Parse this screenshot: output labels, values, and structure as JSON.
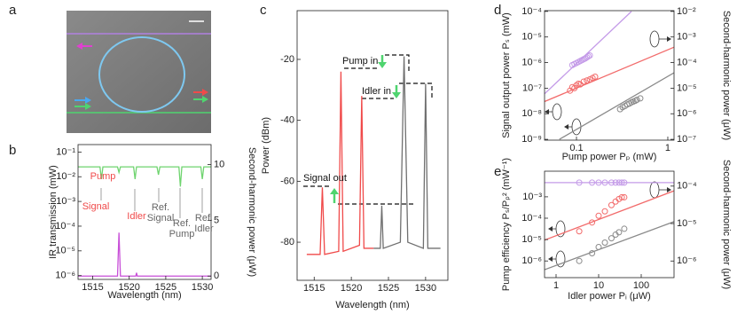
{
  "panel_labels": [
    "a",
    "b",
    "c",
    "d",
    "e"
  ],
  "chart_data": [
    {
      "type": "line",
      "xlabel": "Wavelength (nm)",
      "ylabel": "IR transmission (mW)",
      "y2label": "Second-harmonic power (μW)",
      "xlim": [
        1513,
        1531.2
      ],
      "xticks": [
        1515,
        1520,
        1525,
        1530
      ],
      "ylog": true,
      "ylim": [
        7e-07,
        0.2
      ],
      "yticks": [
        {
          "value": 1e-06,
          "label": "10⁻⁶"
        },
        {
          "value": 1e-05,
          "label": "10⁻⁵"
        },
        {
          "value": 0.0001,
          "label": "10⁻⁴"
        },
        {
          "value": 0.001,
          "label": "10⁻³"
        },
        {
          "value": 0.01,
          "label": "10⁻²"
        },
        {
          "value": 0.1,
          "label": "10⁻¹"
        }
      ],
      "y2lim": [
        -0.3,
        11.8
      ],
      "y2ticks": [
        0,
        5,
        10
      ],
      "series": [
        {
          "color": "#6fd46f",
          "style": "line",
          "x": [
            1513,
            1516,
            1516.2,
            1516.4,
            1518.4,
            1518.6,
            1518.8,
            1520.6,
            1520.8,
            1521,
            1523.8,
            1524,
            1524.2,
            1526.8,
            1527,
            1527.2,
            1529.8,
            1530,
            1530.2,
            1531.2
          ],
          "values": [
            0.025,
            0.025,
            0.008,
            0.025,
            0.025,
            0.015,
            0.025,
            0.025,
            0.008,
            0.025,
            0.025,
            0.012,
            0.025,
            0.025,
            0.004,
            0.025,
            0.025,
            0.008,
            0.025,
            0.025
          ]
        },
        {
          "color": "#c84fd8",
          "style": "line",
          "axis": "y2",
          "x": [
            1513,
            1518.4,
            1518.6,
            1518.8,
            1520.9,
            1521,
            1521.1,
            1531.2
          ],
          "values": [
            0,
            0,
            3.9,
            0,
            0,
            0.3,
            0,
            0
          ]
        }
      ],
      "annotations": [
        {
          "text": "Pump",
          "color": "#f04a4a"
        },
        {
          "text": "Signal",
          "color": "#f04a4a"
        },
        {
          "text": "Idler",
          "color": "#f04a4a"
        },
        {
          "text": "Ref.",
          "color": "#666666"
        },
        {
          "text": "Signal",
          "color": "#666666"
        },
        {
          "text": "Ref.",
          "color": "#666666"
        },
        {
          "text": "Pump",
          "color": "#666666"
        },
        {
          "text": "Ref.",
          "color": "#666666"
        },
        {
          "text": "Idler",
          "color": "#666666"
        }
      ]
    },
    {
      "type": "line",
      "xlabel": "Wavelength (nm)",
      "ylabel": "Power  (dBm)",
      "xlim": [
        1512.7,
        1533
      ],
      "xticks": [
        1515,
        1520,
        1525,
        1530
      ],
      "ylim": [
        -92.5,
        -4
      ],
      "yticks": [
        -80,
        -60,
        -40,
        -20
      ],
      "series": [
        {
          "color": "#f04a4a",
          "style": "line",
          "x": [
            1514,
            1515.8,
            1516.1,
            1516.4,
            1518.3,
            1518.6,
            1518.9,
            1521.1,
            1521.4,
            1521.7,
            1523
          ],
          "values": [
            -84,
            -84,
            -62,
            -84,
            -83,
            -24,
            -83,
            -81,
            -32,
            -82,
            -82
          ]
        },
        {
          "color": "#707070",
          "style": "line",
          "x": [
            1523,
            1523.9,
            1524.1,
            1524.3,
            1526.6,
            1527.1,
            1527.6,
            1529.7,
            1530,
            1530.3,
            1532
          ],
          "values": [
            -82,
            -82,
            -68,
            -82,
            -80,
            -19,
            -80,
            -82,
            -28,
            -82,
            -82
          ]
        }
      ],
      "annotations": [
        {
          "text": "Pump in",
          "color": "#111111"
        },
        {
          "text": "Idler in",
          "color": "#111111"
        },
        {
          "text": "Signal out",
          "color": "#111111"
        }
      ]
    },
    {
      "type": "scatter",
      "xlabel": "Pump power Pₚ (mW)",
      "ylabel": "Signal output power Pₛ (mW)",
      "y2label": "Second-harmonic power (μW)",
      "xlog": true,
      "xlim": [
        0.0447,
        1.17
      ],
      "xticks": [
        0.1,
        1
      ],
      "ylog": true,
      "ylim": [
        9.3e-10,
        0.000107
      ],
      "yticks": [
        {
          "value": 1e-09,
          "label": "10⁻⁹"
        },
        {
          "value": 1e-08,
          "label": "10⁻⁸"
        },
        {
          "value": 1e-07,
          "label": "10⁻⁷"
        },
        {
          "value": 1e-06,
          "label": "10⁻⁶"
        },
        {
          "value": 1e-05,
          "label": "10⁻⁵"
        },
        {
          "value": 0.0001,
          "label": "10⁻⁴"
        }
      ],
      "y2log": true,
      "y2lim": [
        9.3e-08,
        0.0107
      ],
      "y2ticks": [
        {
          "value": 1e-07,
          "label": "10⁻⁷"
        },
        {
          "value": 1e-06,
          "label": "10⁻⁶"
        },
        {
          "value": 1e-05,
          "label": "10⁻⁵"
        },
        {
          "value": 0.0001,
          "label": "10⁻⁴"
        },
        {
          "value": 0.001,
          "label": "10⁻³"
        },
        {
          "value": 0.01,
          "label": "10⁻²"
        }
      ],
      "series": [
        {
          "color": "#c49be8",
          "style": "line",
          "axis": "y2",
          "x": [
            0.0447,
            0.4
          ],
          "values": [
            6e-06,
            0.01
          ]
        },
        {
          "color": "#c49be8",
          "style": "markers",
          "axis": "y2",
          "x": [
            0.09,
            0.095,
            0.1,
            0.105,
            0.11,
            0.115,
            0.12,
            0.125,
            0.13,
            0.135,
            0.14
          ],
          "values": [
            8e-05,
            8.8e-05,
            9.6e-05,
            0.000105,
            0.000115,
            0.000125,
            0.000135,
            0.000145,
            0.00016,
            0.000175,
            0.00019
          ]
        },
        {
          "color": "#f26b6b",
          "style": "line",
          "x": [
            0.0447,
            1.17
          ],
          "values": [
            3e-08,
            4e-06
          ]
        },
        {
          "color": "#f26b6b",
          "style": "markers",
          "x": [
            0.085,
            0.09,
            0.095,
            0.1,
            0.105,
            0.11,
            0.12,
            0.13,
            0.14,
            0.15,
            0.16
          ],
          "values": [
            8e-08,
            1.1e-07,
            1e-07,
            1.3e-07,
            1.5e-07,
            1.4e-07,
            1.8e-07,
            2e-07,
            2.2e-07,
            2.5e-07,
            2.8e-07
          ]
        },
        {
          "color": "#8a8a8a",
          "style": "line",
          "x": [
            0.065,
            1.17
          ],
          "values": [
            1e-09,
            4e-07
          ]
        },
        {
          "color": "#8a8a8a",
          "style": "markers",
          "x": [
            0.3,
            0.32,
            0.34,
            0.36,
            0.38,
            0.4,
            0.42,
            0.44,
            0.46,
            0.5
          ],
          "values": [
            1.5e-08,
            1.8e-08,
            2e-08,
            2.3e-08,
            2.5e-08,
            2.8e-08,
            3e-08,
            3.2e-08,
            3.5e-08,
            4e-08
          ]
        }
      ]
    },
    {
      "type": "scatter",
      "xlabel": "Idler power Pᵢ (μW)",
      "ylabel": "Pump efficiency Pₛ/Pₚ² (mW⁻¹)",
      "y2label": "Second-harmonic power (μW)",
      "xlog": true,
      "xlim": [
        0.536,
        590
      ],
      "xticks": [
        1,
        10,
        100
      ],
      "ylog": true,
      "ylim": [
        1.66e-07,
        0.0158
      ],
      "yticks": [
        {
          "value": 1e-06,
          "label": "10⁻⁶"
        },
        {
          "value": 1e-05,
          "label": "10⁻⁵"
        },
        {
          "value": 0.0001,
          "label": "10⁻⁴"
        },
        {
          "value": 0.001,
          "label": "10⁻³"
        }
      ],
      "y2log": true,
      "y2lim": [
        3.6e-07,
        0.00025
      ],
      "y2ticks": [
        {
          "value": 1e-06,
          "label": "10⁻⁶"
        },
        {
          "value": 1e-05,
          "label": "10⁻⁵"
        },
        {
          "value": 0.0001,
          "label": "10⁻⁴"
        }
      ],
      "series": [
        {
          "color": "#c49be8",
          "style": "line",
          "axis": "y2",
          "x": [
            0.536,
            590
          ],
          "values": [
            0.000124,
            0.000124
          ]
        },
        {
          "color": "#c49be8",
          "style": "markers",
          "axis": "y2",
          "x": [
            3.5,
            7,
            10,
            14,
            20,
            25,
            30,
            35,
            40
          ],
          "values": [
            0.000124,
            0.000124,
            0.000124,
            0.000124,
            0.000124,
            0.000124,
            0.000124,
            0.000124,
            0.000124
          ]
        },
        {
          "color": "#f26b6b",
          "style": "line",
          "x": [
            0.536,
            590
          ],
          "values": [
            9.5e-06,
            0.0019
          ]
        },
        {
          "color": "#f26b6b",
          "style": "markers",
          "x": [
            3.5,
            7,
            10,
            14,
            20,
            25,
            30,
            35,
            40
          ],
          "values": [
            2.45e-05,
            6.3e-05,
            0.00013,
            0.00021,
            0.00041,
            0.0006,
            0.00079,
            0.00095,
            0.00095
          ]
        },
        {
          "color": "#8a8a8a",
          "style": "line",
          "x": [
            0.536,
            590
          ],
          "values": [
            3.9e-07,
            6.9e-05
          ]
        },
        {
          "color": "#8a8a8a",
          "style": "markers",
          "x": [
            3.5,
            7,
            10,
            14,
            20,
            25,
            30,
            40
          ],
          "values": [
            1e-06,
            2.3e-06,
            4.5e-06,
            7.2e-06,
            1.15e-05,
            1.7e-05,
            2.2e-05,
            3.2e-05
          ]
        }
      ]
    }
  ]
}
